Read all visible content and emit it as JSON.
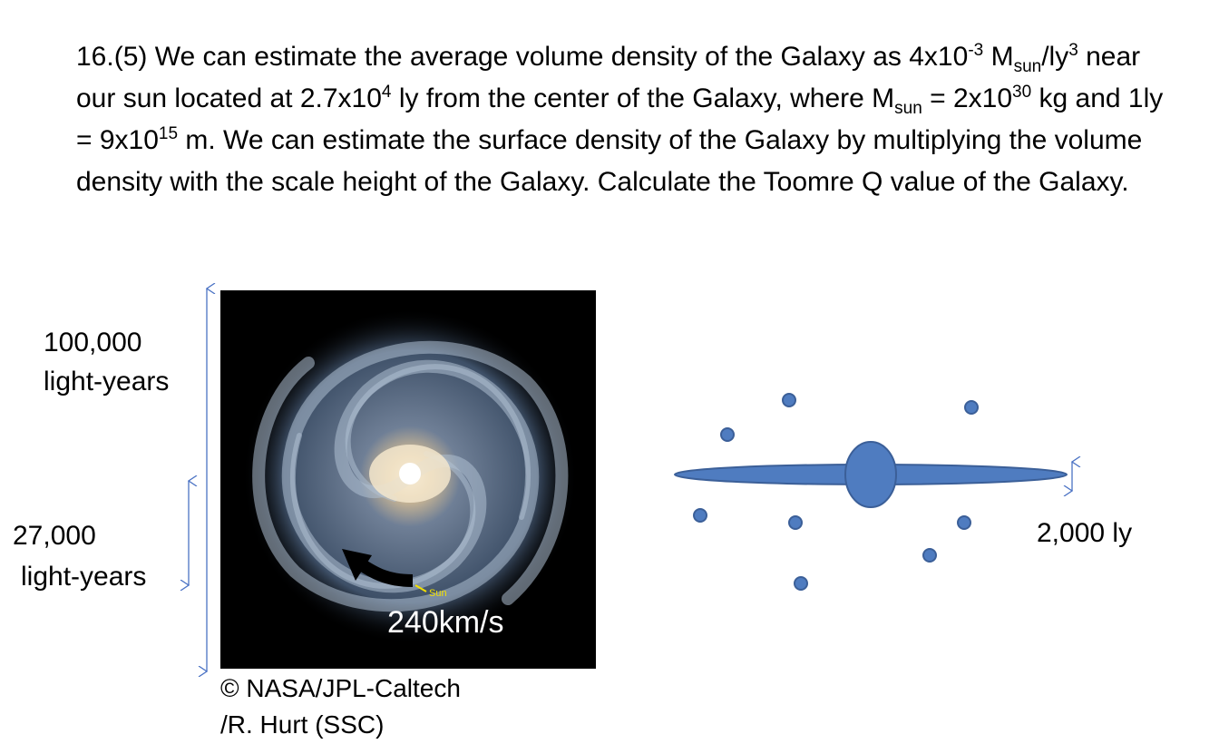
{
  "question": {
    "parts": [
      "16.(5) We can estimate the average volume density of the Galaxy as 4x10",
      "-3",
      "M",
      "sun",
      "/ly",
      "3",
      " near our sun located at 2.7x10",
      "4",
      " ly from the center of the Galaxy, where M",
      "sun",
      " = 2x10",
      "30",
      " kg and 1ly = 9x10",
      "15",
      " m. We can estimate the surface density of the Galaxy by multiplying the volume density with the scale height of the Galaxy. Calculate the Toomre Q value of the Galaxy."
    ]
  },
  "labels": {
    "diameter": [
      "100,000",
      "light-years"
    ],
    "radius": [
      "27,000",
      "light-years"
    ],
    "velocity": "240km/s",
    "sun": "Sun",
    "credit": [
      "© NASA/JPL-Caltech",
      "/R. Hurt (SSC)"
    ],
    "scale_height": "2,000 ly"
  }
}
